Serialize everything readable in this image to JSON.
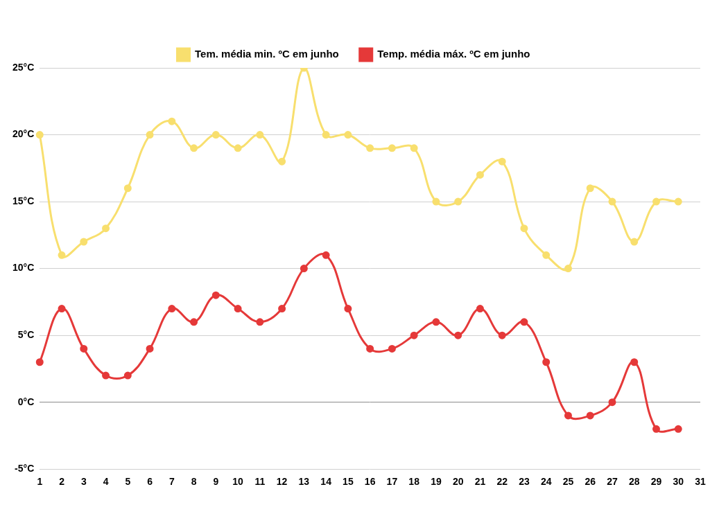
{
  "chart_data": {
    "type": "line",
    "categories": [
      "1",
      "2",
      "3",
      "4",
      "5",
      "6",
      "7",
      "8",
      "9",
      "10",
      "11",
      "12",
      "13",
      "14",
      "15",
      "16",
      "17",
      "18",
      "19",
      "20",
      "21",
      "22",
      "23",
      "24",
      "25",
      "26",
      "27",
      "28",
      "29",
      "30",
      "31"
    ],
    "series": [
      {
        "name": "Tem. média min. ºC em junho",
        "color": "#f8df6e",
        "marker": "circle",
        "line_style": "solid",
        "values": [
          20,
          11,
          12,
          13,
          16,
          20,
          21,
          19,
          20,
          19,
          20,
          18,
          25,
          20,
          20,
          19,
          19,
          19,
          15,
          15,
          17,
          18,
          13,
          11,
          10,
          16,
          15,
          12,
          15,
          15,
          null
        ]
      },
      {
        "name": "Temp. média máx. ºC em junho",
        "color": "#e53939",
        "marker": "circle",
        "line_style": "solid",
        "values": [
          3,
          7,
          4,
          2,
          2,
          4,
          7,
          6,
          8,
          7,
          6,
          7,
          10,
          11,
          7,
          4,
          4,
          5,
          6,
          5,
          7,
          5,
          6,
          3,
          -1,
          -1,
          0,
          3,
          -2,
          -2,
          null
        ]
      }
    ],
    "ylim": [
      -5,
      25
    ],
    "yticks": [
      {
        "value": -5,
        "label": "-5°C"
      },
      {
        "value": 0,
        "label": "0°C"
      },
      {
        "value": 5,
        "label": "5°C"
      },
      {
        "value": 10,
        "label": "10°C"
      },
      {
        "value": 15,
        "label": "15°C"
      },
      {
        "value": 20,
        "label": "20°C"
      },
      {
        "value": 25,
        "label": "25°C"
      }
    ],
    "grid": true,
    "legend": "top"
  }
}
